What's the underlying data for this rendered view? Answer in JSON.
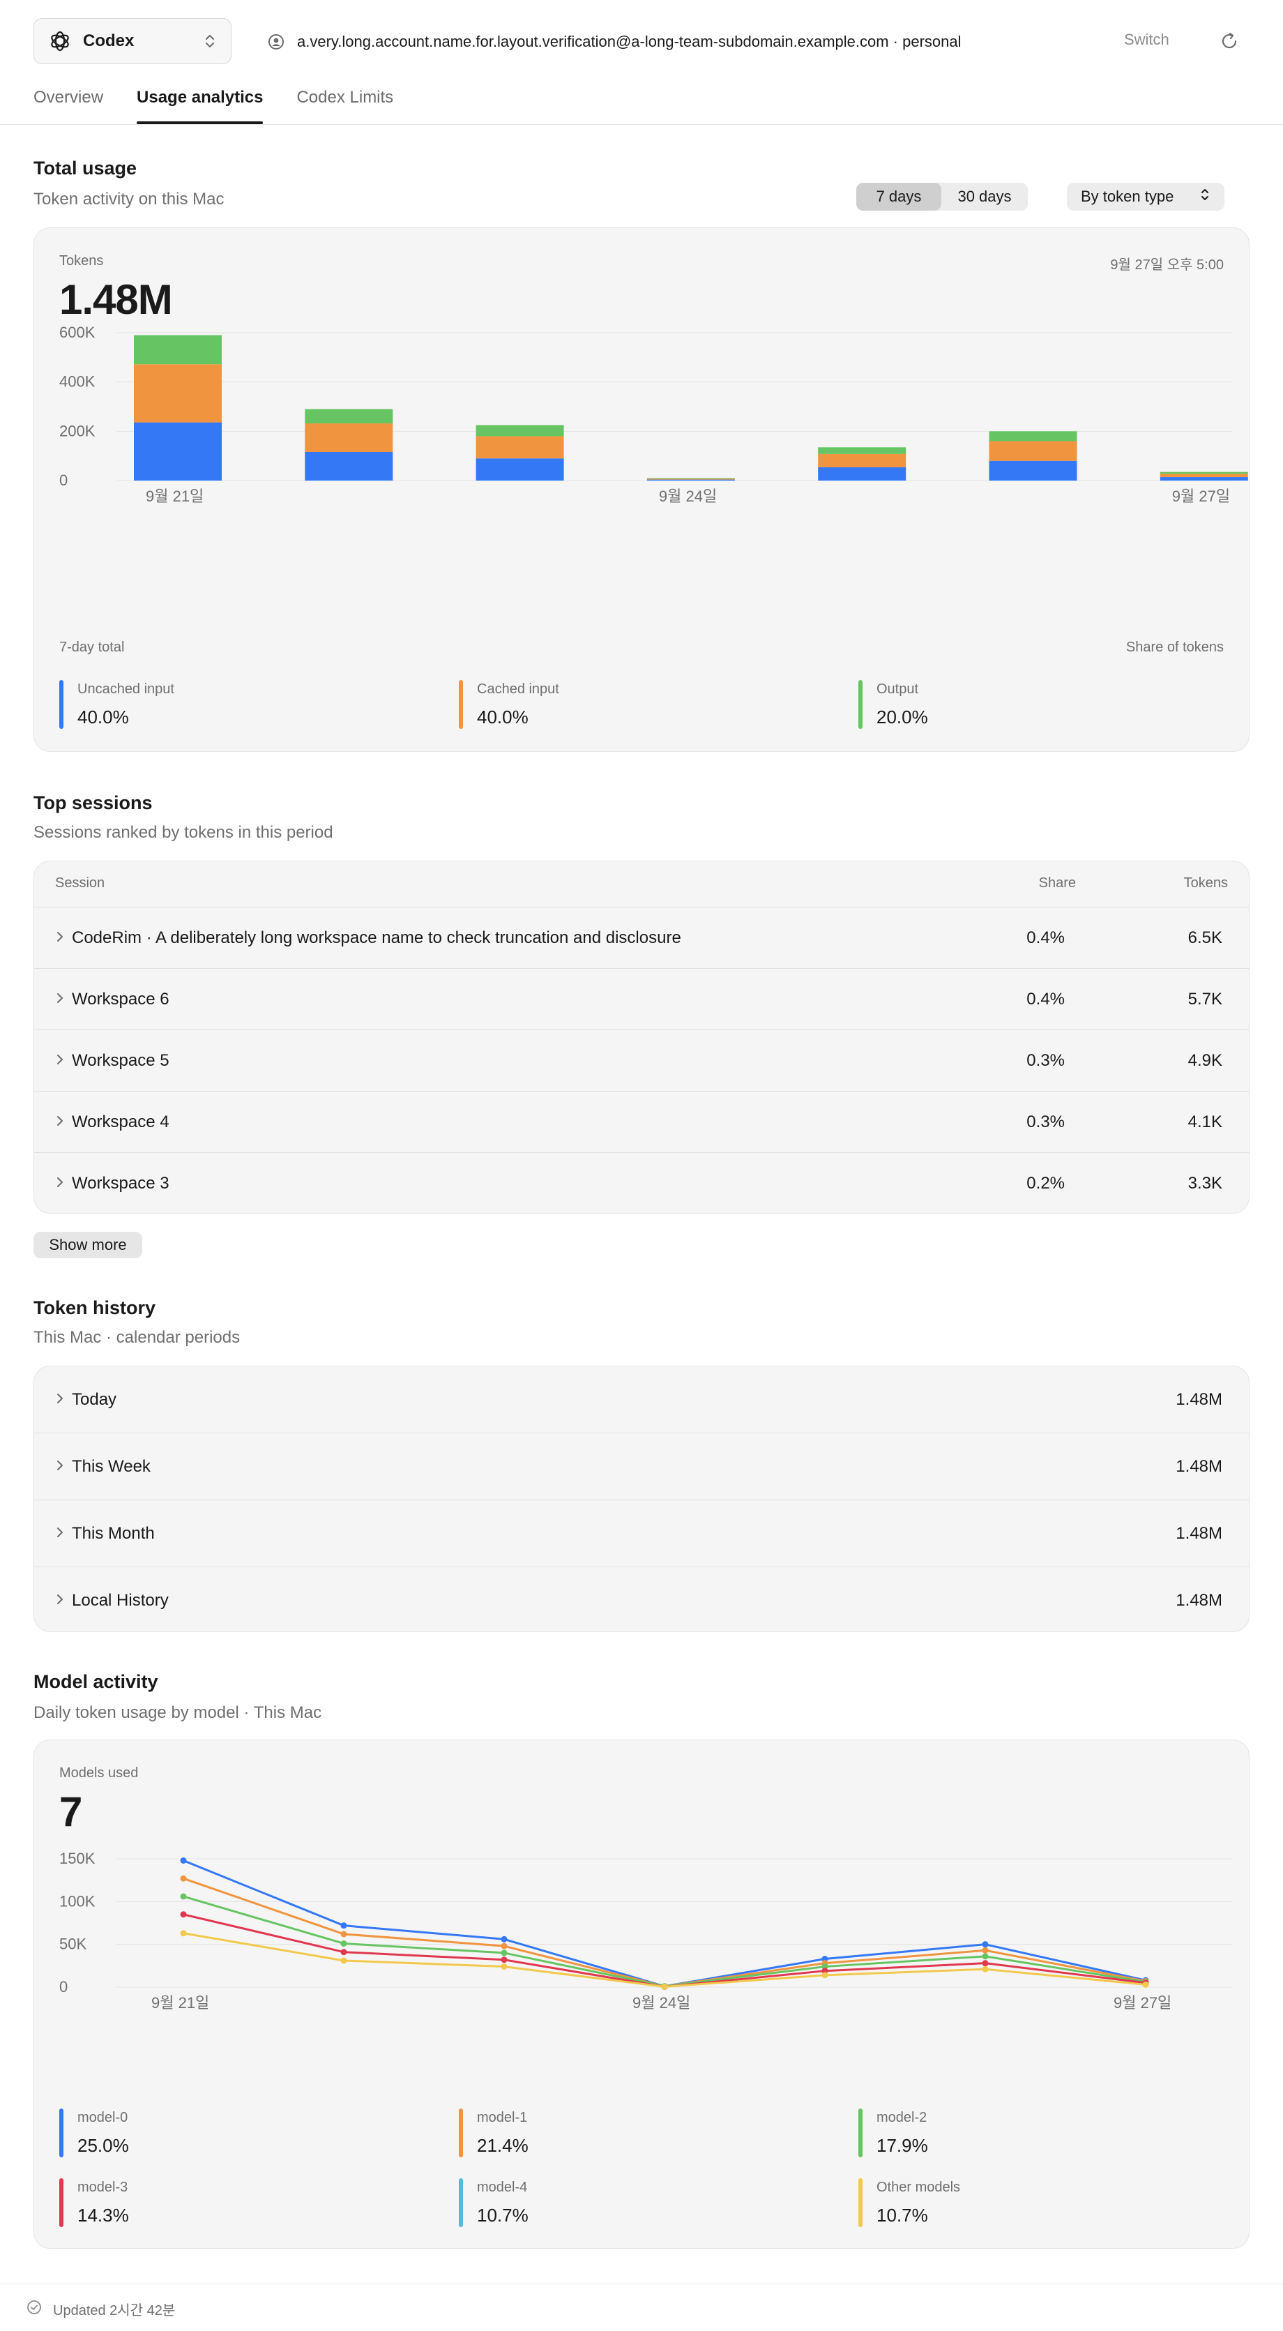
{
  "header": {
    "app_name": "Codex",
    "account_text": "a.very.long.account.name.for.layout.verification@a-long-team-subdomain.example.com · personal",
    "switch_label": "Switch"
  },
  "tabs": [
    {
      "label": "Overview",
      "active": false
    },
    {
      "label": "Usage analytics",
      "active": true
    },
    {
      "label": "Codex Limits",
      "active": false
    }
  ],
  "total_usage": {
    "title": "Total usage",
    "subtitle": "Token activity on this Mac",
    "range_options": [
      "7 days",
      "30 days"
    ],
    "range_selected": "7 days",
    "group_by": "By token type",
    "metric_label": "Tokens",
    "metric_value": "1.48M",
    "timestamp": "9월 27일 오후 5:00",
    "footer_left": "7-day total",
    "footer_right": "Share of tokens",
    "legend": [
      {
        "label": "Uncached input",
        "pct": "40.0%",
        "color": "#3478f6"
      },
      {
        "label": "Cached input",
        "pct": "40.0%",
        "color": "#f0943f"
      },
      {
        "label": "Output",
        "pct": "20.0%",
        "color": "#66c562"
      }
    ]
  },
  "chart_data": [
    {
      "type": "bar",
      "stacked": true,
      "categories": [
        "9월 21일",
        "9월 22일",
        "9월 23일",
        "9월 24일",
        "9월 25일",
        "9월 26일",
        "9월 27일"
      ],
      "x_tick_labels": [
        "9월 21일",
        "9월 24일",
        "9월 27일"
      ],
      "series": [
        {
          "name": "Uncached input",
          "color": "#3478f6",
          "values": [
            236000,
            116000,
            90000,
            4000,
            54000,
            80000,
            14000
          ]
        },
        {
          "name": "Cached input",
          "color": "#f0943f",
          "values": [
            236000,
            116000,
            90000,
            4000,
            54000,
            80000,
            14000
          ]
        },
        {
          "name": "Output",
          "color": "#66c562",
          "values": [
            118000,
            58000,
            45000,
            2000,
            27000,
            40000,
            7000
          ]
        }
      ],
      "y_ticks": [
        "0",
        "200K",
        "400K",
        "600K"
      ],
      "ylim": [
        0,
        600000
      ],
      "grid": true
    },
    {
      "type": "line",
      "x": [
        "9월 21일",
        "9월 22일",
        "9월 23일",
        "9월 24일",
        "9월 25일",
        "9월 26일",
        "9월 27일"
      ],
      "x_tick_labels": [
        "9월 21일",
        "9월 24일",
        "9월 27일"
      ],
      "series": [
        {
          "name": "model-0",
          "color": "#3478f6",
          "values": [
            148000,
            72000,
            56000,
            1000,
            33000,
            50000,
            8000
          ]
        },
        {
          "name": "model-1",
          "color": "#f0943f",
          "values": [
            127000,
            62000,
            48000,
            1000,
            28000,
            43000,
            7000
          ]
        },
        {
          "name": "model-2",
          "color": "#66c562",
          "values": [
            106000,
            51000,
            40000,
            1000,
            24000,
            36000,
            6000
          ]
        },
        {
          "name": "model-3",
          "color": "#e0384f",
          "values": [
            85000,
            41000,
            32000,
            500,
            19000,
            28000,
            5000
          ]
        },
        {
          "name": "Other models",
          "color": "#f2c94c",
          "values": [
            63000,
            31000,
            24000,
            500,
            14000,
            21000,
            3000
          ]
        }
      ],
      "y_ticks": [
        "0",
        "50K",
        "100K",
        "150K"
      ],
      "ylim": [
        0,
        150000
      ],
      "grid": true
    }
  ],
  "top_sessions": {
    "title": "Top sessions",
    "subtitle": "Sessions ranked by tokens in this period",
    "col_session": "Session",
    "col_share": "Share",
    "col_tokens": "Tokens",
    "rows": [
      {
        "name": "CodeRim · A deliberately long workspace name to check truncation and disclosure",
        "share": "0.4%",
        "tokens": "6.5K"
      },
      {
        "name": "Workspace 6",
        "share": "0.4%",
        "tokens": "5.7K"
      },
      {
        "name": "Workspace 5",
        "share": "0.3%",
        "tokens": "4.9K"
      },
      {
        "name": "Workspace 4",
        "share": "0.3%",
        "tokens": "4.1K"
      },
      {
        "name": "Workspace 3",
        "share": "0.2%",
        "tokens": "3.3K"
      }
    ],
    "show_more": "Show more"
  },
  "token_history": {
    "title": "Token history",
    "subtitle": "This Mac · calendar periods",
    "rows": [
      {
        "name": "Today",
        "value": "1.48M"
      },
      {
        "name": "This Week",
        "value": "1.48M"
      },
      {
        "name": "This Month",
        "value": "1.48M"
      },
      {
        "name": "Local History",
        "value": "1.48M"
      }
    ]
  },
  "model_activity": {
    "title": "Model activity",
    "subtitle": "Daily token usage by model · This Mac",
    "metric_label": "Models used",
    "metric_value": "7",
    "legend": [
      {
        "label": "model-0",
        "pct": "25.0%",
        "color": "#3478f6"
      },
      {
        "label": "model-1",
        "pct": "21.4%",
        "color": "#f0943f"
      },
      {
        "label": "model-2",
        "pct": "17.9%",
        "color": "#66c562"
      },
      {
        "label": "model-3",
        "pct": "14.3%",
        "color": "#e0384f"
      },
      {
        "label": "model-4",
        "pct": "10.7%",
        "color": "#5ab8d6"
      },
      {
        "label": "Other models",
        "pct": "10.7%",
        "color": "#f2c94c"
      }
    ]
  },
  "footer": {
    "status": "Updated 2시간 42분"
  }
}
